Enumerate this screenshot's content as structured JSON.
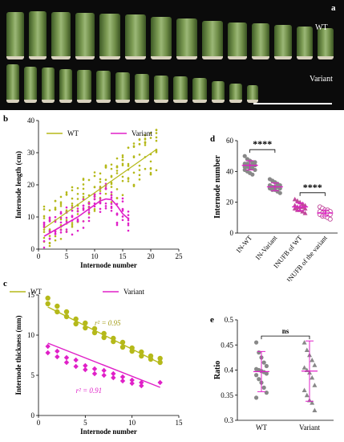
{
  "panels": {
    "a": {
      "label": "a",
      "wt_tag": "WT",
      "variant_tag": "Variant",
      "wt_segment_heights": [
        0.92,
        0.93,
        0.92,
        0.9,
        0.88,
        0.86,
        0.82,
        0.78,
        0.74,
        0.7,
        0.68,
        0.65,
        0.62,
        0.58
      ],
      "variant_segment_heights": [
        0.95,
        0.9,
        0.86,
        0.83,
        0.8,
        0.78,
        0.74,
        0.7,
        0.66,
        0.62,
        0.58,
        0.5,
        0.44,
        0.4
      ]
    },
    "b": {
      "label": "b"
    },
    "c": {
      "label": "c"
    },
    "d": {
      "label": "d"
    },
    "e": {
      "label": "e"
    }
  },
  "chart_data": [
    {
      "id": "b",
      "type": "scatter",
      "xlabel": "Internode number",
      "ylabel": "Internode length (cm)",
      "xlim": [
        0,
        25
      ],
      "ylim": [
        0,
        40
      ],
      "xticks": [
        0,
        5,
        10,
        15,
        20,
        25
      ],
      "yticks": [
        0,
        10,
        20,
        30,
        40
      ],
      "series": [
        {
          "name": "WT",
          "color": "#b5b91a",
          "fit": [
            [
              1,
              6.5
            ],
            [
              21,
              31
            ]
          ]
        },
        {
          "name": "Variant",
          "color": "#e020c8",
          "fit": [
            [
              1,
              4
            ],
            [
              3,
              6
            ],
            [
              5,
              8
            ],
            [
              7,
              10
            ],
            [
              9,
              12.5
            ],
            [
              11,
              15
            ],
            [
              12,
              15.6
            ],
            [
              13,
              15.4
            ],
            [
              14,
              13.5
            ],
            [
              15,
              11
            ],
            [
              16,
              9.5
            ]
          ]
        }
      ]
    },
    {
      "id": "c",
      "type": "scatter",
      "xlabel": "Internode number",
      "ylabel": "Internode thickness (mm)",
      "xlim": [
        0,
        15
      ],
      "ylim": [
        0,
        15
      ],
      "xticks": [
        0,
        5,
        10,
        15
      ],
      "yticks": [
        0,
        5,
        10,
        15
      ],
      "series": [
        {
          "name": "WT",
          "color": "#b5b91a",
          "annotation": "r² = 0.95",
          "fit": [
            [
              1,
              13.5
            ],
            [
              13,
              6.5
            ]
          ],
          "points": [
            [
              1,
              14.6
            ],
            [
              1,
              13.9
            ],
            [
              2,
              13.6
            ],
            [
              2,
              12.9
            ],
            [
              3,
              12.9
            ],
            [
              3,
              12.3
            ],
            [
              4,
              12.0
            ],
            [
              4,
              11.4
            ],
            [
              5,
              11.5
            ],
            [
              5,
              10.9
            ],
            [
              6,
              10.8
            ],
            [
              6,
              10.3
            ],
            [
              7,
              10.2
            ],
            [
              7,
              9.7
            ],
            [
              8,
              9.6
            ],
            [
              8,
              9.2
            ],
            [
              9,
              9.1
            ],
            [
              9,
              8.5
            ],
            [
              10,
              8.4
            ],
            [
              10,
              8.0
            ],
            [
              11,
              7.9
            ],
            [
              11,
              7.4
            ],
            [
              12,
              7.4
            ],
            [
              12,
              7.0
            ],
            [
              13,
              7.1
            ],
            [
              13,
              6.6
            ]
          ]
        },
        {
          "name": "Variant",
          "color": "#e020c8",
          "annotation": "r² = 0.91",
          "fit": [
            [
              1,
              9
            ],
            [
              13,
              3.5
            ]
          ],
          "points": [
            [
              1,
              8.6
            ],
            [
              1,
              7.8
            ],
            [
              2,
              8.0
            ],
            [
              2,
              7.3
            ],
            [
              3,
              7.2
            ],
            [
              3,
              6.6
            ],
            [
              4,
              6.9
            ],
            [
              4,
              6.1
            ],
            [
              5,
              6.2
            ],
            [
              5,
              5.7
            ],
            [
              6,
              5.8
            ],
            [
              6,
              5.2
            ],
            [
              7,
              5.6
            ],
            [
              7,
              5.0
            ],
            [
              8,
              5.2
            ],
            [
              8,
              4.7
            ],
            [
              9,
              4.8
            ],
            [
              9,
              4.3
            ],
            [
              10,
              4.4
            ],
            [
              10,
              4.0
            ],
            [
              11,
              4.1
            ],
            [
              11,
              3.7
            ],
            [
              13,
              4.1
            ]
          ]
        }
      ]
    },
    {
      "id": "d",
      "type": "scatter",
      "ylabel": "Internode number",
      "ylim": [
        0,
        60
      ],
      "yticks": [
        0,
        20,
        40,
        60
      ],
      "categories": [
        "IN-WT",
        "IN-Variant",
        "INUFB of WT",
        "INUFB of the variant"
      ],
      "groups": [
        {
          "color": "#888888",
          "mean": 44,
          "sd": 3,
          "values": [
            50,
            48,
            47,
            46,
            46,
            45,
            45,
            44,
            44,
            44,
            43,
            43,
            42,
            42,
            41,
            41,
            40,
            39,
            38
          ]
        },
        {
          "color": "#888888",
          "mean": 30,
          "sd": 2.5,
          "values": [
            35,
            34,
            33,
            32,
            31,
            31,
            30,
            30,
            30,
            29,
            29,
            28,
            28,
            27,
            26
          ]
        },
        {
          "color": "#c0489a",
          "mean": 17,
          "sd": 2.5,
          "values": [
            22,
            21,
            20,
            19,
            18,
            18,
            17,
            17,
            17,
            16,
            16,
            15,
            15,
            14,
            13
          ]
        },
        {
          "color": "#c0489a",
          "mean": 13,
          "sd": 2,
          "values": [
            17,
            16,
            15,
            15,
            14,
            14,
            13,
            13,
            13,
            12,
            12,
            11,
            11,
            10,
            9
          ]
        }
      ],
      "significance": [
        {
          "from": 0,
          "to": 1,
          "label": "****"
        },
        {
          "from": 2,
          "to": 3,
          "label": "****"
        }
      ]
    },
    {
      "id": "e",
      "type": "scatter",
      "ylabel": "Ratio",
      "ylim": [
        0.3,
        0.5
      ],
      "yticks": [
        0.3,
        0.35,
        0.4,
        0.45,
        0.5
      ],
      "categories": [
        "WT",
        "Variant"
      ],
      "groups": [
        {
          "color": "#888888",
          "mean": 0.397,
          "sd": 0.04,
          "values": [
            0.455,
            0.435,
            0.425,
            0.415,
            0.408,
            0.402,
            0.4,
            0.398,
            0.396,
            0.393,
            0.39,
            0.382,
            0.375,
            0.365,
            0.355,
            0.345
          ]
        },
        {
          "color": "#888888",
          "mean": 0.398,
          "sd": 0.06,
          "values": [
            0.455,
            0.44,
            0.43,
            0.42,
            0.41,
            0.405,
            0.4,
            0.395,
            0.385,
            0.37,
            0.36,
            0.35,
            0.34,
            0.335,
            0.32
          ]
        }
      ],
      "significance": [
        {
          "from": 0,
          "to": 1,
          "label": "ns"
        }
      ]
    }
  ]
}
